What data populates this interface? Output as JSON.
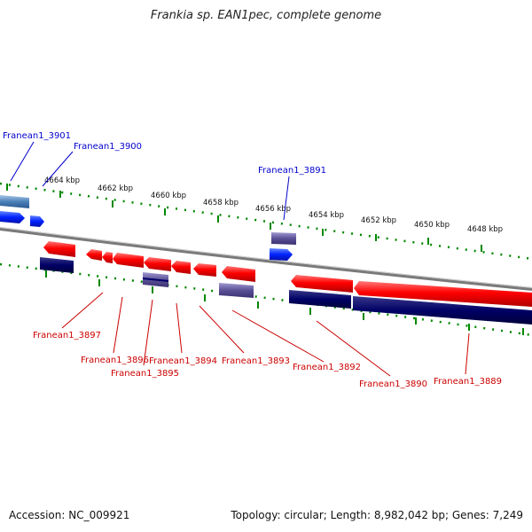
{
  "header": {
    "title": "Frankia sp. EAN1pec, complete genome"
  },
  "footer": {
    "accession": "Accession: NC_009921",
    "summary": "Topology: circular; Length: 8,982,042 bp; Genes: 7,249"
  },
  "scale": {
    "unit": "kbp",
    "ticks": [
      "4664 kbp",
      "4662 kbp",
      "4660 kbp",
      "4658 kbp",
      "4656 kbp",
      "4654 kbp",
      "4652 kbp",
      "4650 kbp",
      "4648 kbp"
    ]
  },
  "genes_top": [
    "Franean1_3901",
    "Franean1_3900",
    "Franean1_3891"
  ],
  "genes_bottom": [
    "Franean1_3897",
    "Franean1_3896",
    "Franean1_3895",
    "Franean1_3894",
    "Franean1_3893",
    "Franean1_3892",
    "Franean1_3890",
    "Franean1_3889"
  ],
  "colors": {
    "forward_gene": "#0033ff",
    "reverse_gene": "#ff0000",
    "cds_dark": "#000066",
    "label_top": "#0000cc",
    "label_bottom": "#cc0000",
    "tick": "#008800",
    "backbone": "#888888"
  }
}
